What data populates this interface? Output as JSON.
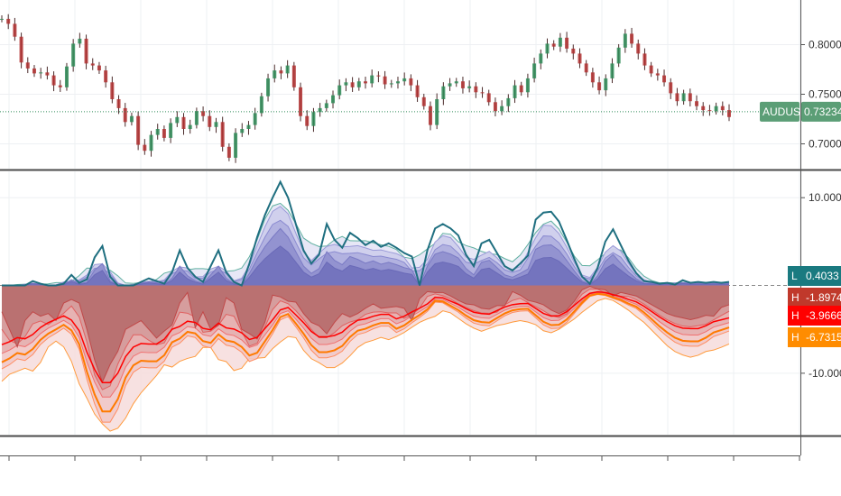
{
  "chart_data": [
    {
      "type": "candlestick",
      "pane": "price",
      "symbol": "AUDUSD",
      "last_value_label": "0.73234",
      "last_value": 0.73234,
      "y_ticks": [
        "0.80000",
        "0.75000",
        "0.70000"
      ],
      "ylim": [
        0.675,
        0.845
      ],
      "grid": true,
      "colors": {
        "line": "#7a1f1f",
        "last_tag": "#5b9e76",
        "last_line": "#2e8b57"
      },
      "close_series": [
        0.826,
        0.821,
        0.808,
        0.782,
        0.776,
        0.771,
        0.772,
        0.769,
        0.759,
        0.757,
        0.778,
        0.801,
        0.806,
        0.781,
        0.779,
        0.774,
        0.762,
        0.745,
        0.736,
        0.722,
        0.728,
        0.699,
        0.693,
        0.709,
        0.715,
        0.706,
        0.721,
        0.727,
        0.715,
        0.719,
        0.733,
        0.728,
        0.717,
        0.722,
        0.697,
        0.686,
        0.711,
        0.715,
        0.719,
        0.731,
        0.748,
        0.766,
        0.774,
        0.771,
        0.779,
        0.757,
        0.728,
        0.718,
        0.732,
        0.736,
        0.741,
        0.749,
        0.759,
        0.762,
        0.757,
        0.763,
        0.761,
        0.769,
        0.768,
        0.76,
        0.761,
        0.763,
        0.766,
        0.759,
        0.747,
        0.738,
        0.719,
        0.745,
        0.758,
        0.761,
        0.763,
        0.756,
        0.758,
        0.752,
        0.751,
        0.742,
        0.733,
        0.738,
        0.746,
        0.759,
        0.752,
        0.766,
        0.781,
        0.791,
        0.801,
        0.798,
        0.807,
        0.796,
        0.791,
        0.781,
        0.772,
        0.762,
        0.754,
        0.766,
        0.781,
        0.797,
        0.811,
        0.801,
        0.791,
        0.779,
        0.771,
        0.769,
        0.762,
        0.751,
        0.743,
        0.751,
        0.743,
        0.738,
        0.734,
        0.733,
        0.738,
        0.734,
        0.727
      ]
    },
    {
      "type": "area",
      "pane": "oscillator",
      "y_ticks": [
        "10.0000",
        "-10.0000"
      ],
      "ylim": [
        -17,
        13
      ],
      "zero_line": true,
      "grid": true,
      "colors": {
        "positive_fill": "#7b7bc0",
        "positive_line": "#1f7a80",
        "negative_fill": "#9e4a4a",
        "negative_line": "#ff7a00",
        "mid_line": "#ff0000"
      },
      "series": [
        {
          "values": [
            0,
            0,
            0,
            0,
            0.5,
            0.2,
            0,
            0,
            0.2,
            1.2,
            0.3,
            0.7,
            3.2,
            4.5,
            1,
            0,
            0,
            0,
            0.4,
            0.8,
            0.5,
            0.2,
            1.5,
            4,
            2,
            1,
            0.4,
            2.2,
            4,
            1.5,
            0.4,
            0,
            2.5,
            5.5,
            8,
            10,
            11.8,
            10,
            7,
            4,
            2.5,
            3.5,
            7,
            5.2,
            4.3,
            6,
            5.4,
            4.6,
            5.1,
            4.4,
            4.8,
            4.3,
            3.7,
            3.3,
            0,
            4,
            6.5,
            7,
            6.5,
            5.7,
            3.5,
            2.2,
            4.8,
            5.2,
            3.7,
            2.2,
            1.7,
            2.5,
            3.4,
            7.5,
            8.3,
            8.4,
            7.3,
            5.2,
            3,
            1,
            0.2,
            2,
            5,
            6.4,
            4.6,
            2.8,
            1.4,
            0.5,
            0.4,
            0.2,
            0.3,
            0.1,
            0.6,
            0.3,
            0.4,
            0.3,
            0.4,
            0.3,
            0.4
          ]
        },
        {
          "values": [
            -3,
            -5,
            -7,
            -4,
            -3,
            -3.5,
            -3.2,
            -4,
            -2,
            -1.6,
            -2,
            -5,
            -8.5,
            -11,
            -9,
            -7.5,
            -5,
            -4.5,
            -4,
            -5,
            -6,
            -5.2,
            -4.5,
            -2,
            -0.8,
            -4.8,
            -3,
            -5,
            -4.5,
            -1.4,
            -2,
            -5,
            -5.5,
            -6.1,
            -4.2,
            -1.1,
            -1.3,
            -1.8,
            -1.9,
            -3.2,
            -4.2,
            -4.6,
            -5.5,
            -4.2,
            -3.2,
            -3.6,
            -3.2,
            -2.6,
            -2.1,
            -2.6,
            -2.5,
            -2.4,
            -2.6,
            -4,
            -1.5,
            -0.7,
            -0.8,
            -0.8,
            -1.2,
            -1.7,
            -2.1,
            -2.2,
            -2.6,
            -2.7,
            -2.3,
            -2.3,
            -0.7,
            -1.1,
            -1.7,
            -1.9,
            -2.2,
            -2.8,
            -3.2,
            -2.8,
            -1.8,
            -0.5,
            -0.1,
            -0.4,
            -0.5,
            -1.2,
            -0.8,
            -1,
            -1.2,
            -1.7,
            -2.2,
            -2.7,
            -3.2,
            -3.5,
            -3.7,
            -3.9,
            -3.7,
            -3.4,
            -3.5,
            -2.5,
            -2.2
          ]
        }
      ],
      "last_value_tags": [
        {
          "prefix": "L",
          "label": "0.4033",
          "value": 0.4033,
          "color": "#1a7a80"
        },
        {
          "prefix": "H",
          "label": "-1.8974",
          "value": -1.8974,
          "color": "#c0392b"
        },
        {
          "prefix": "H",
          "label": "-3.9666",
          "value": -3.9666,
          "color": "#ff0000"
        },
        {
          "prefix": "H",
          "label": "-6.7315",
          "value": -6.7315,
          "color": "#ff8c00"
        }
      ]
    }
  ]
}
